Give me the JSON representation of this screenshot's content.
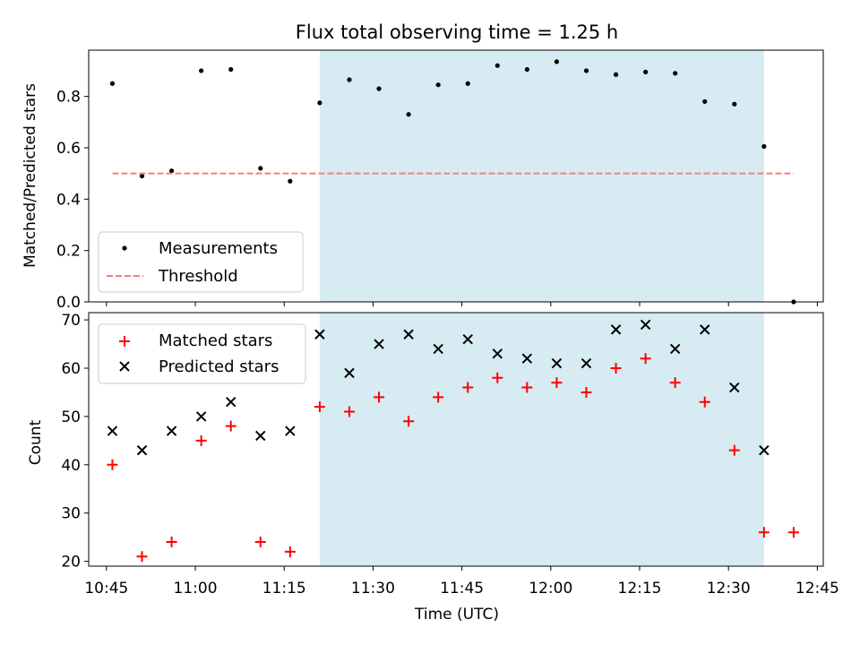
{
  "figure": {
    "title": "Flux total observing time = 1.25 h",
    "xlabel": "Time (UTC)"
  },
  "colors": {
    "shade": "#add8e6",
    "measurement": "#000000",
    "threshold": "#f08080",
    "matched": "#ff0000",
    "predicted": "#000000"
  },
  "chart_data": [
    {
      "type": "scatter",
      "panel": "top",
      "ylabel": "Matched/Predicted stars",
      "xlim": [
        "10:42",
        "12:46"
      ],
      "ylim": [
        0,
        0.98
      ],
      "yticks": [
        0.0,
        0.2,
        0.4,
        0.6,
        0.8
      ],
      "xticks": [
        "10:45",
        "11:00",
        "11:15",
        "11:30",
        "11:45",
        "12:00",
        "12:15",
        "12:30",
        "12:45"
      ],
      "shaded_interval": [
        "11:21",
        "12:36"
      ],
      "legend": {
        "position": "lower-left",
        "entries": [
          "Measurements",
          "Threshold"
        ]
      },
      "series": [
        {
          "name": "Measurements",
          "marker": "dot",
          "x": [
            "10:46",
            "10:51",
            "10:56",
            "11:01",
            "11:06",
            "11:11",
            "11:16",
            "11:21",
            "11:26",
            "11:31",
            "11:36",
            "11:41",
            "11:46",
            "11:51",
            "11:56",
            "12:01",
            "12:06",
            "12:11",
            "12:16",
            "12:21",
            "12:26",
            "12:31",
            "12:36",
            "12:41"
          ],
          "y": [
            0.85,
            0.49,
            0.51,
            0.9,
            0.905,
            0.52,
            0.47,
            0.775,
            0.865,
            0.83,
            0.73,
            0.845,
            0.85,
            0.92,
            0.905,
            0.935,
            0.9,
            0.885,
            0.895,
            0.89,
            0.78,
            0.77,
            0.605,
            0.0
          ]
        },
        {
          "name": "Threshold",
          "style": "dashed",
          "x": [
            "10:46",
            "12:41"
          ],
          "y": [
            0.5,
            0.5
          ]
        }
      ]
    },
    {
      "type": "scatter",
      "panel": "bottom",
      "ylabel": "Count",
      "xlim": [
        "10:42",
        "12:46"
      ],
      "ylim": [
        19,
        71.5
      ],
      "yticks": [
        20,
        30,
        40,
        50,
        60,
        70
      ],
      "xticks": [
        "10:45",
        "11:00",
        "11:15",
        "11:30",
        "11:45",
        "12:00",
        "12:15",
        "12:30",
        "12:45"
      ],
      "shaded_interval": [
        "11:21",
        "12:36"
      ],
      "legend": {
        "position": "upper-left",
        "entries": [
          "Matched stars",
          "Predicted stars"
        ]
      },
      "series": [
        {
          "name": "Matched stars",
          "marker": "plus",
          "x": [
            "10:46",
            "10:51",
            "10:56",
            "11:01",
            "11:06",
            "11:11",
            "11:16",
            "11:21",
            "11:26",
            "11:31",
            "11:36",
            "11:41",
            "11:46",
            "11:51",
            "11:56",
            "12:01",
            "12:06",
            "12:11",
            "12:16",
            "12:21",
            "12:26",
            "12:31",
            "12:36",
            "12:41"
          ],
          "y": [
            40,
            21,
            24,
            45,
            48,
            24,
            22,
            52,
            51,
            54,
            49,
            54,
            56,
            58,
            56,
            57,
            55,
            60,
            62,
            57,
            53,
            43,
            26,
            26
          ]
        },
        {
          "name": "Predicted stars",
          "marker": "x",
          "x": [
            "10:46",
            "10:51",
            "10:56",
            "11:01",
            "11:06",
            "11:11",
            "11:16",
            "11:21",
            "11:26",
            "11:31",
            "11:36",
            "11:41",
            "11:46",
            "11:51",
            "11:56",
            "12:01",
            "12:06",
            "12:11",
            "12:16",
            "12:21",
            "12:26",
            "12:31",
            "12:36"
          ],
          "y": [
            47,
            43,
            47,
            50,
            53,
            46,
            47,
            67,
            59,
            65,
            67,
            64,
            66,
            63,
            62,
            61,
            61,
            68,
            69,
            64,
            68,
            56,
            43
          ]
        }
      ]
    }
  ]
}
